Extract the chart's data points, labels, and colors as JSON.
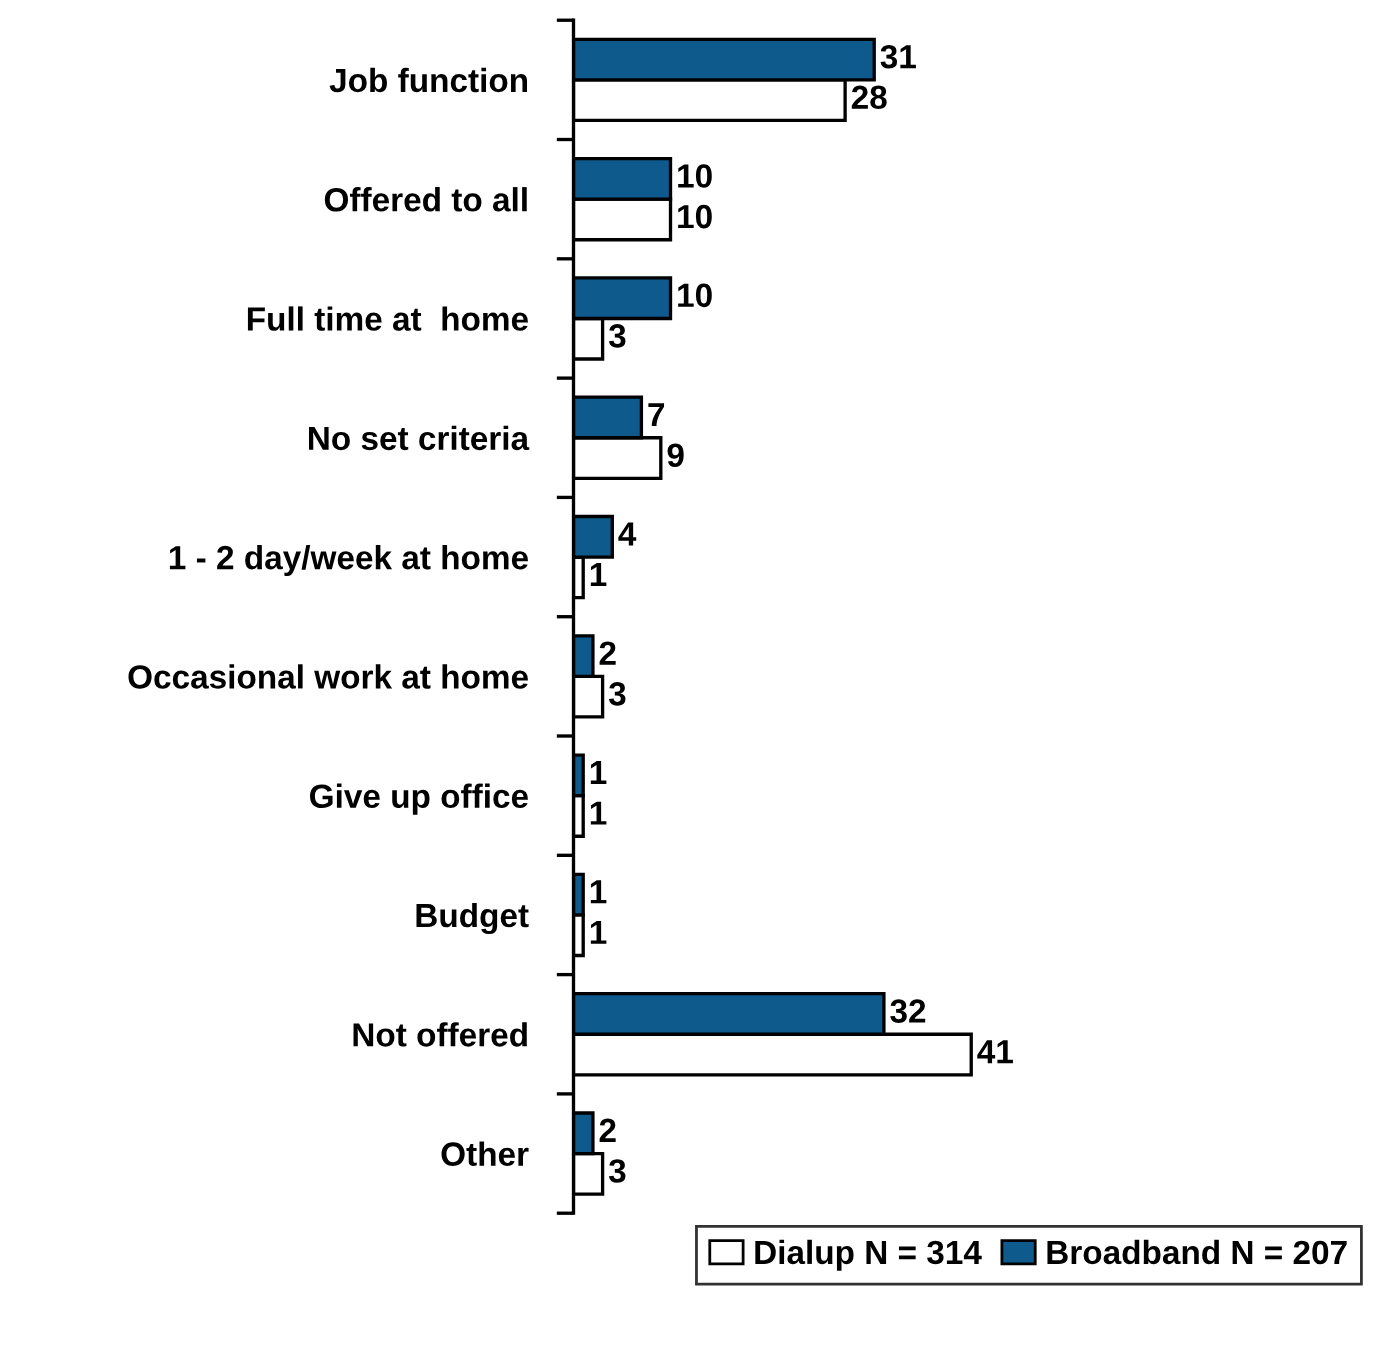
{
  "chart_data": {
    "type": "bar",
    "orientation": "horizontal",
    "categories": [
      "Job function",
      "Offered to all",
      "Full time at  home",
      "No set criteria",
      "1 - 2 day/week at home",
      "Occasional work at home",
      "Give up office",
      "Budget",
      "Not offered",
      "Other"
    ],
    "series": [
      {
        "name": "Dialup N = 314",
        "color": "#ffffff",
        "values": [
          28,
          10,
          3,
          9,
          1,
          3,
          1,
          1,
          41,
          3
        ]
      },
      {
        "name": "Broadband N = 207",
        "color": "#0f5a8c",
        "values": [
          31,
          10,
          10,
          7,
          4,
          2,
          1,
          1,
          32,
          2
        ]
      }
    ],
    "data_labels": true,
    "legend": "bottom right",
    "grid": false
  }
}
